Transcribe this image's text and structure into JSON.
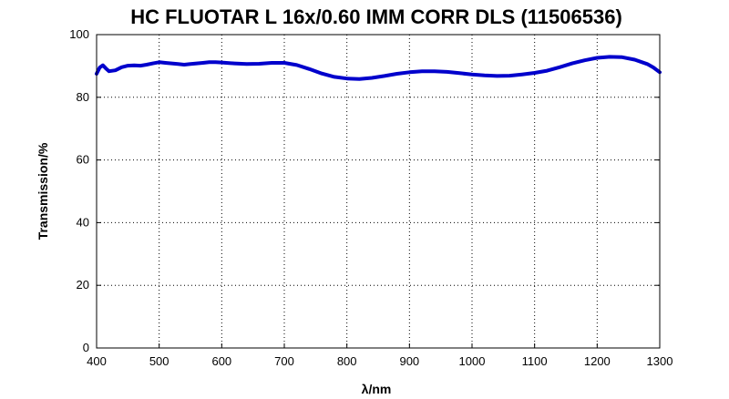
{
  "chart_data": {
    "type": "line",
    "title": "HC FLUOTAR L 16x/0.60 IMM CORR DLS (11506536)",
    "xlabel": "λ/nm",
    "ylabel": "Transmission/%",
    "xlim": [
      400,
      1300
    ],
    "ylim": [
      0,
      100
    ],
    "xticks": [
      400,
      500,
      600,
      700,
      800,
      900,
      1000,
      1100,
      1200,
      1300
    ],
    "yticks": [
      0,
      20,
      40,
      60,
      80,
      100
    ],
    "grid": true,
    "line_color": "#0000cc",
    "series": [
      {
        "x": [
          400,
          405,
          410,
          415,
          420,
          430,
          440,
          450,
          460,
          470,
          480,
          490,
          500,
          510,
          520,
          530,
          540,
          550,
          560,
          570,
          580,
          590,
          600,
          620,
          640,
          660,
          680,
          700,
          720,
          740,
          760,
          780,
          800,
          820,
          840,
          860,
          880,
          900,
          920,
          940,
          960,
          980,
          1000,
          1020,
          1040,
          1060,
          1080,
          1100,
          1120,
          1140,
          1160,
          1180,
          1200,
          1220,
          1240,
          1260,
          1280,
          1290,
          1300
        ],
        "y": [
          87.5,
          89.5,
          90.2,
          89.2,
          88.3,
          88.6,
          89.6,
          90.1,
          90.2,
          90.1,
          90.4,
          90.8,
          91.2,
          91.0,
          90.8,
          90.6,
          90.4,
          90.6,
          90.8,
          91.0,
          91.2,
          91.2,
          91.1,
          90.8,
          90.6,
          90.7,
          91.0,
          91.0,
          90.3,
          89.0,
          87.6,
          86.5,
          86.0,
          85.8,
          86.2,
          86.8,
          87.5,
          88.0,
          88.3,
          88.3,
          88.1,
          87.7,
          87.3,
          87.0,
          86.8,
          86.9,
          87.3,
          87.8,
          88.5,
          89.6,
          90.8,
          91.8,
          92.6,
          92.9,
          92.8,
          92.0,
          90.6,
          89.5,
          88.0
        ]
      }
    ]
  }
}
